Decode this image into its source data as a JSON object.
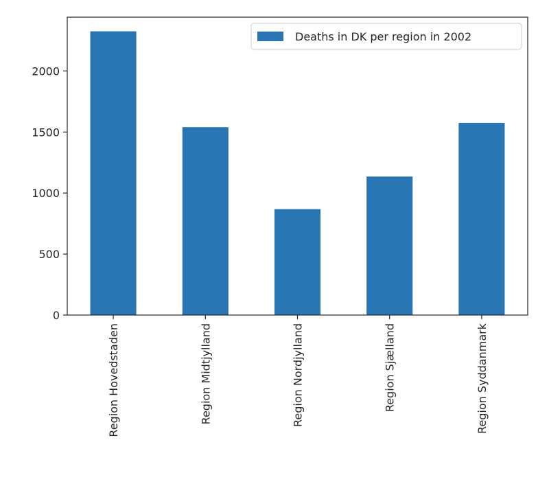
{
  "chart_data": {
    "type": "bar",
    "categories": [
      "Region Hovedstaden",
      "Region Midtjylland",
      "Region Nordjylland",
      "Region Sjælland",
      "Region Syddanmark"
    ],
    "series": [
      {
        "name": "Deaths in DK per region in 2002",
        "values": [
          2325,
          1540,
          868,
          1135,
          1575
        ]
      }
    ],
    "yticks": [
      0,
      500,
      1000,
      1500,
      2000
    ],
    "ylim": [
      0,
      2441
    ],
    "title": "",
    "xlabel": "",
    "ylabel": "",
    "grid": false,
    "legend": "top-right",
    "bar_color": "#2a76b4",
    "axis_color": "#262626"
  }
}
